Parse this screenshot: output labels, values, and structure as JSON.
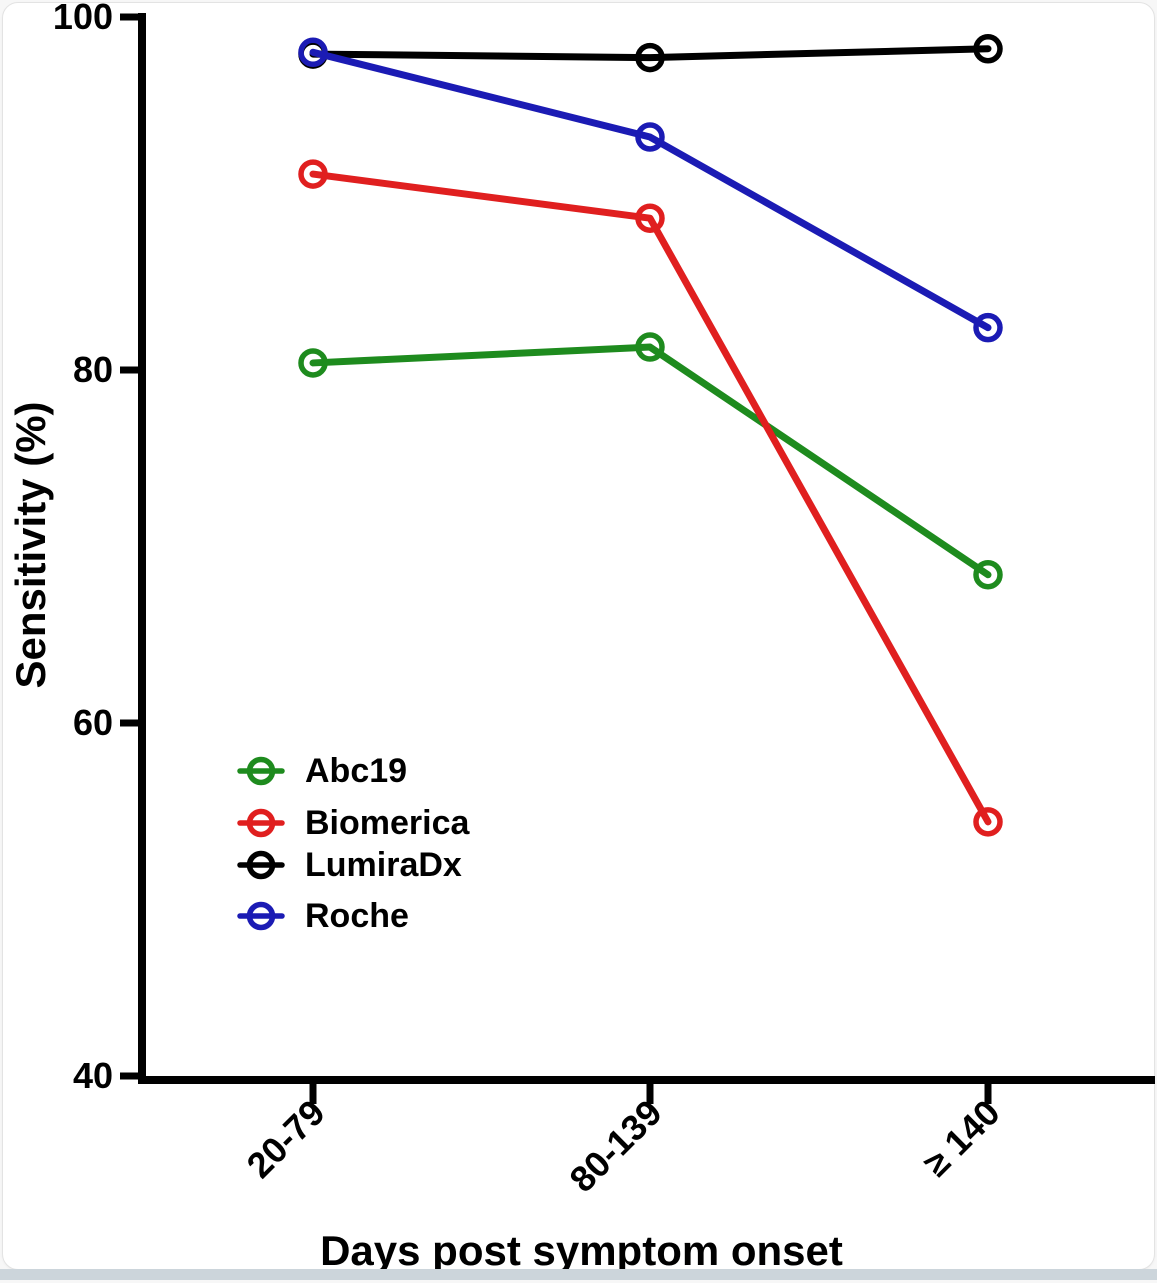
{
  "figure": {
    "card_background": "#ffffff",
    "card_border_color": "#e3e3e3",
    "bottom_strip_color": "#ccd5db",
    "axis_color": "#000000"
  },
  "chart_data": {
    "type": "line",
    "title": "",
    "xlabel": "Days post symptom onset",
    "ylabel": "Sensitivity (%)",
    "categories": [
      "20-79",
      "80-139",
      "≥ 140"
    ],
    "y_ticks": [
      40,
      60,
      80,
      100
    ],
    "ylim": [
      40,
      100
    ],
    "grid": false,
    "marker": "open-circle",
    "legend_position": "inside-lower-left",
    "series": [
      {
        "name": "Abc19",
        "color": "#1e8b1e",
        "values": [
          80.4,
          81.3,
          68.4
        ]
      },
      {
        "name": "Biomerica",
        "color": "#e01f1f",
        "values": [
          91.1,
          88.6,
          54.4
        ]
      },
      {
        "name": "LumiraDx",
        "color": "#000000",
        "values": [
          97.9,
          97.7,
          98.2
        ]
      },
      {
        "name": "Roche",
        "color": "#1b1bb4",
        "values": [
          98.0,
          93.2,
          82.4
        ]
      }
    ]
  }
}
